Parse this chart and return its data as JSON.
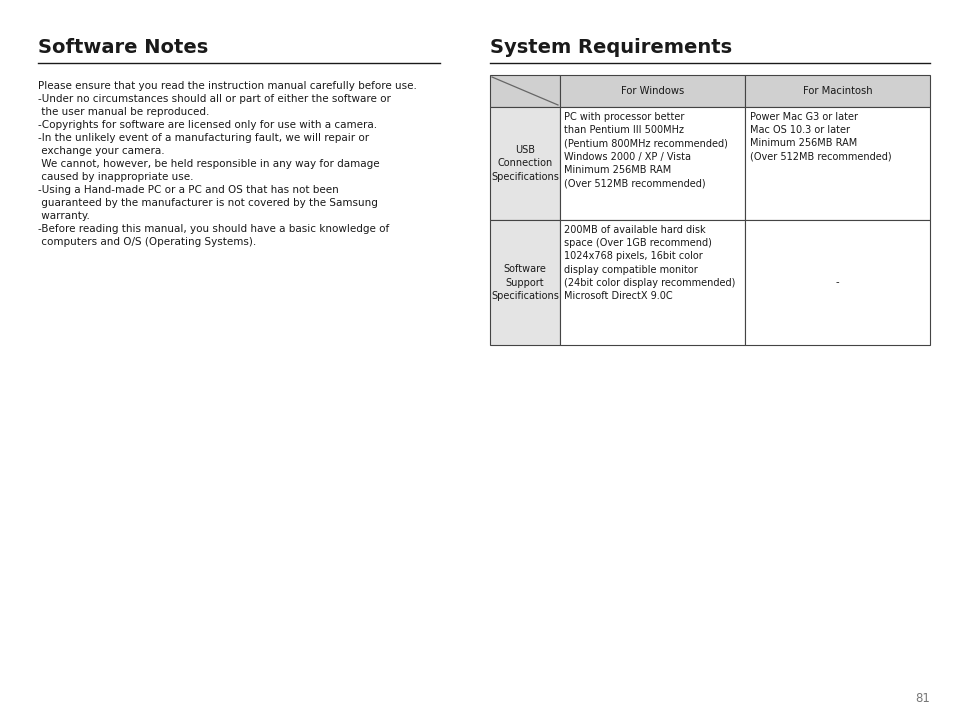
{
  "page_number": "81",
  "left_title": "Software Notes",
  "right_title": "System Requirements",
  "left_text": [
    "Please ensure that you read the instruction manual carefully before use.",
    "-Under no circumstances should all or part of either the software or",
    " the user manual be reproduced.",
    "-Copyrights for software are licensed only for use with a camera.",
    "-In the unlikely event of a manufacturing fault, we will repair or",
    " exchange your camera.",
    " We cannot, however, be held responsible in any way for damage",
    " caused by inappropriate use.",
    "-Using a Hand-made PC or a PC and OS that has not been",
    " guaranteed by the manufacturer is not covered by the Samsung",
    " warranty.",
    "-Before reading this manual, you should have a basic knowledge of",
    " computers and O/S (Operating Systems)."
  ],
  "table_header_bg": "#d0d0d0",
  "table_row_bg": "#e4e4e4",
  "table_border_color": "#444444",
  "col_headers": [
    "For Windows",
    "For Macintosh"
  ],
  "row_headers": [
    "USB\nConnection\nSpecifications",
    "Software\nSupport\nSpecifications"
  ],
  "windows_row1": "PC with processor better\nthan Pentium III 500MHz\n(Pentium 800MHz recommended)\nWindows 2000 / XP / Vista\nMinimum 256MB RAM\n(Over 512MB recommended)",
  "mac_row1": "Power Mac G3 or later\nMac OS 10.3 or later\nMinimum 256MB RAM\n(Over 512MB recommended)",
  "windows_row2": "200MB of available hard disk\nspace (Over 1GB recommend)\n1024x768 pixels, 16bit color\ndisplay compatible monitor\n(24bit color display recommended)\nMicrosoft DirectX 9.0C",
  "mac_row2": "-",
  "bg_color": "#ffffff",
  "text_color": "#1a1a1a",
  "title_fontsize": 14,
  "body_fontsize": 7.5,
  "table_fontsize": 7.2
}
